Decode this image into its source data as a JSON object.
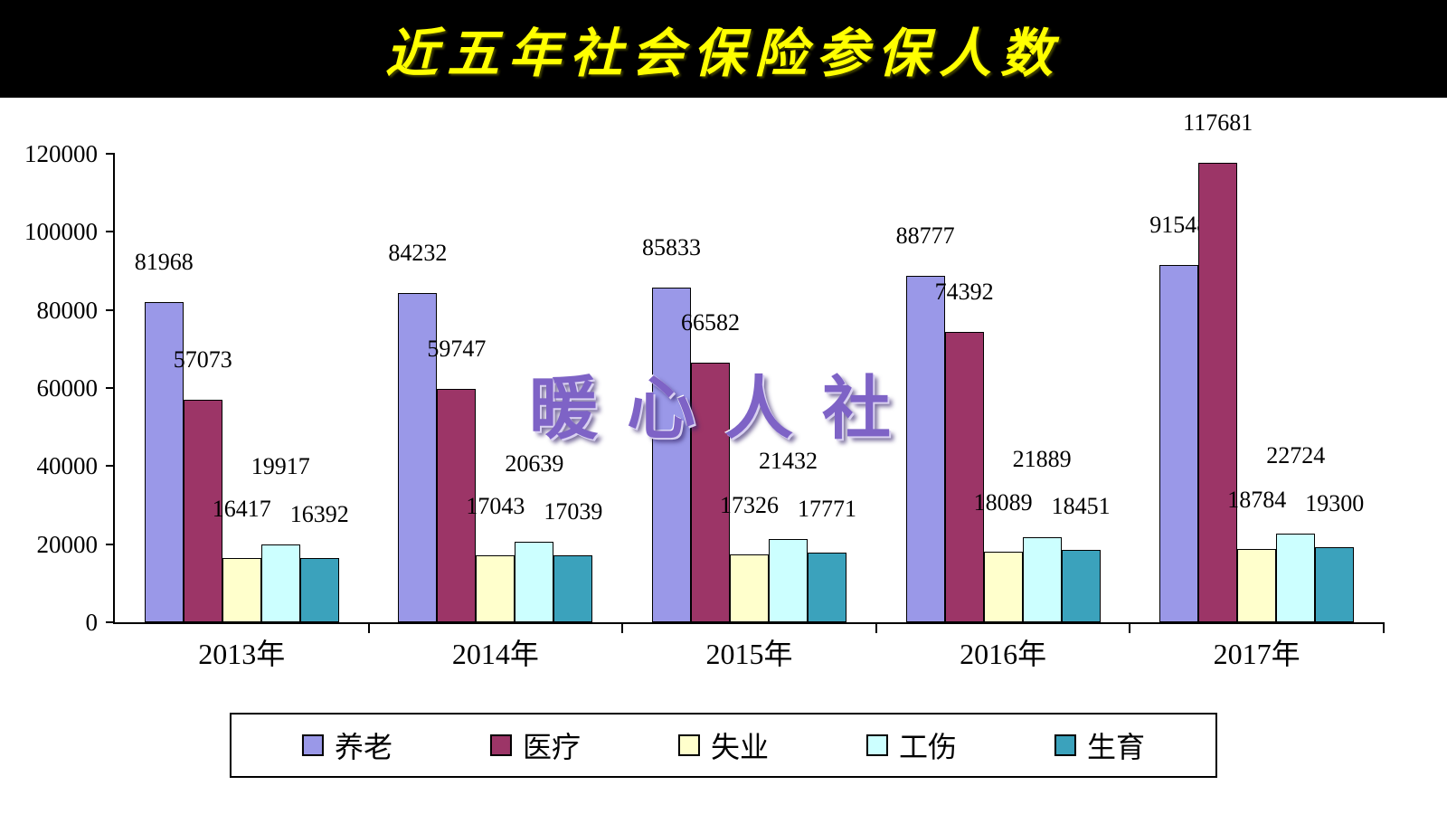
{
  "header": {
    "title": "近五年社会保险参保人数"
  },
  "watermark": "暖心人社",
  "chart_data": {
    "type": "bar",
    "title": "近五年社会保险参保人数",
    "categories": [
      "2013年",
      "2014年",
      "2015年",
      "2016年",
      "2017年"
    ],
    "series": [
      {
        "name": "养老",
        "color": "#9a98e8",
        "values": [
          81968,
          84232,
          85833,
          88777,
          91548
        ]
      },
      {
        "name": "医疗",
        "color": "#9c3567",
        "values": [
          57073,
          59747,
          66582,
          74392,
          117681
        ]
      },
      {
        "name": "失业",
        "color": "#ffffcc",
        "values": [
          16417,
          17043,
          17326,
          18089,
          18784
        ]
      },
      {
        "name": "工伤",
        "color": "#ccffff",
        "values": [
          19917,
          20639,
          21432,
          21889,
          22724
        ]
      },
      {
        "name": "生育",
        "color": "#3ba2bc",
        "values": [
          16392,
          17039,
          17771,
          18451,
          19300
        ]
      }
    ],
    "ylim": [
      0,
      120000
    ],
    "ytick_interval": 20000,
    "yticks": [
      "0",
      "20000",
      "40000",
      "60000",
      "80000",
      "100000",
      "120000"
    ],
    "grid": false,
    "legend_position": "bottom"
  }
}
